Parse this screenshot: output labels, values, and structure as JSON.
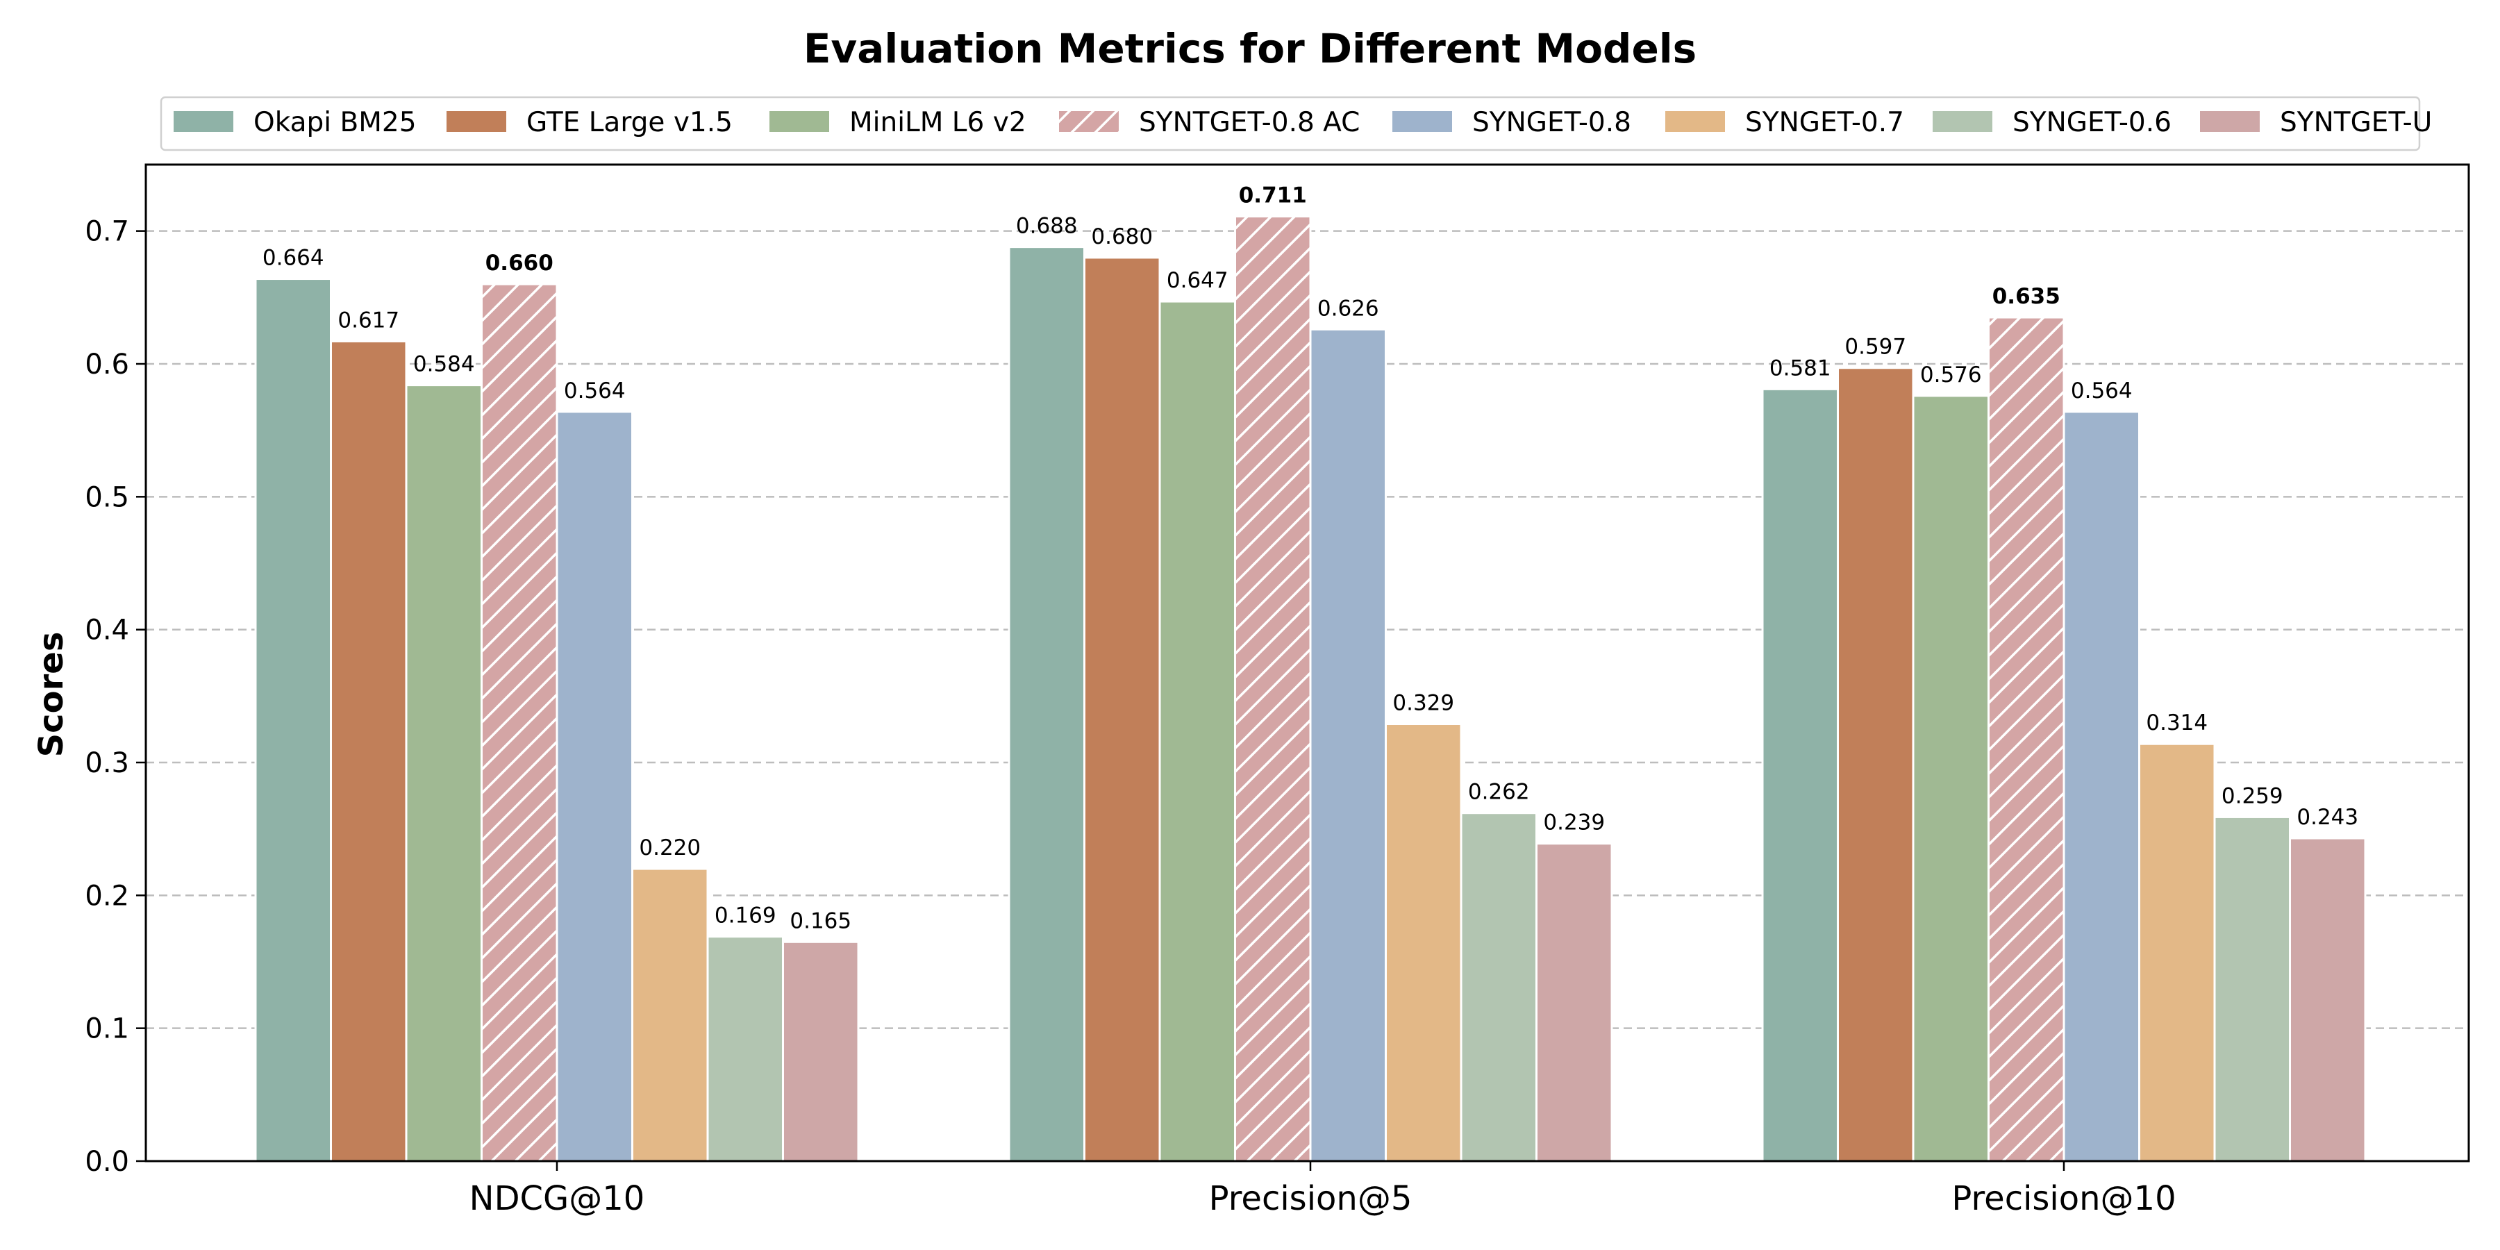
{
  "chart_data": {
    "type": "bar",
    "title": "Evaluation Metrics for Different Models",
    "xlabel": "",
    "ylabel": "Scores",
    "ylim": [
      0,
      0.75
    ],
    "yticks": [
      "0.0",
      "0.1",
      "0.2",
      "0.3",
      "0.4",
      "0.5",
      "0.6",
      "0.7"
    ],
    "grid": "y-dashed",
    "legend_position": "top-center",
    "categories": [
      "NDCG@10",
      "Precision@5",
      "Precision@10"
    ],
    "series": [
      {
        "name": "Okapi BM25",
        "color": "#8fb2a7",
        "hatch": false,
        "values": [
          0.664,
          0.688,
          0.581
        ],
        "labels": [
          "0.664",
          "0.688",
          "0.581"
        ]
      },
      {
        "name": "GTE Large v1.5",
        "color": "#c17f59",
        "hatch": false,
        "values": [
          0.617,
          0.68,
          0.597
        ],
        "labels": [
          "0.617",
          "0.680",
          "0.597"
        ]
      },
      {
        "name": "MiniLM L6 v2",
        "color": "#a0b993",
        "hatch": false,
        "values": [
          0.584,
          0.647,
          0.576
        ],
        "labels": [
          "0.584",
          "0.647",
          "0.576"
        ]
      },
      {
        "name": "SYNTGET-0.8 AC",
        "color": "#d4a5a5",
        "hatch": true,
        "bold_labels": true,
        "values": [
          0.66,
          0.711,
          0.635
        ],
        "labels": [
          "0.660",
          "0.711",
          "0.635"
        ]
      },
      {
        "name": "SYNGET-0.8",
        "color": "#9eb3cc",
        "hatch": false,
        "values": [
          0.564,
          0.626,
          0.564
        ],
        "labels": [
          "0.564",
          "0.626",
          "0.564"
        ]
      },
      {
        "name": "SYNGET-0.7",
        "color": "#e3b887",
        "hatch": false,
        "values": [
          0.22,
          0.329,
          0.314
        ],
        "labels": [
          "0.220",
          "0.329",
          "0.314"
        ]
      },
      {
        "name": "SYNGET-0.6",
        "color": "#b2c5b1",
        "hatch": false,
        "values": [
          0.169,
          0.262,
          0.259
        ],
        "labels": [
          "0.169",
          "0.262",
          "0.259"
        ]
      },
      {
        "name": "SYNTGET-U",
        "color": "#cea7a7",
        "hatch": false,
        "values": [
          0.165,
          0.239,
          0.243
        ],
        "labels": [
          "0.165",
          "0.239",
          "0.243"
        ]
      }
    ]
  }
}
